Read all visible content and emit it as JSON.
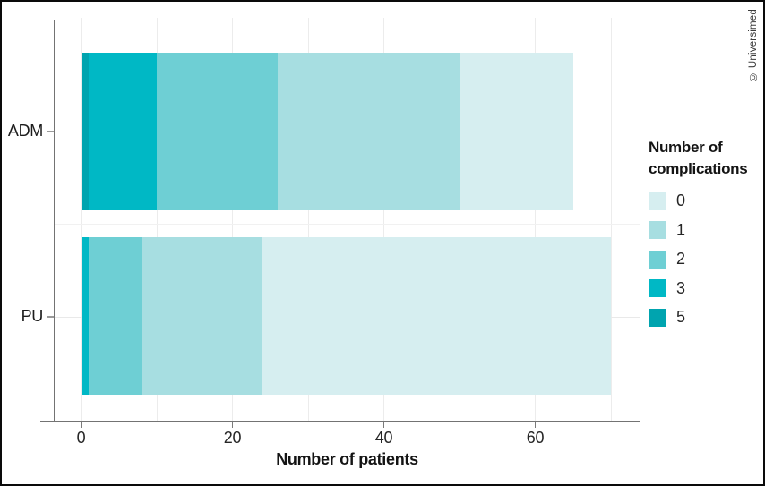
{
  "copyright": "© Universimed",
  "chart_data": {
    "type": "bar",
    "orientation": "horizontal",
    "stacked": true,
    "title": "",
    "xlabel": "Number of patients",
    "ylabel": "",
    "categories": [
      "ADM",
      "PU"
    ],
    "series": [
      {
        "name": "0",
        "color": "#d6eef0",
        "values": [
          15,
          46
        ]
      },
      {
        "name": "1",
        "color": "#a7dee1",
        "values": [
          24,
          16
        ]
      },
      {
        "name": "2",
        "color": "#6ecfd4",
        "values": [
          16,
          7
        ]
      },
      {
        "name": "3",
        "color": "#00b8c5",
        "values": [
          9,
          1
        ]
      },
      {
        "name": "5",
        "color": "#00a4af",
        "values": [
          1,
          0
        ]
      }
    ],
    "stack_order_from_axis": [
      "5",
      "3",
      "2",
      "1",
      "0"
    ],
    "totals": {
      "ADM": 65,
      "PU": 70
    },
    "xlim": [
      0,
      74
    ],
    "xticks": [
      0,
      20,
      40,
      60
    ],
    "x_grid_step": 10,
    "grid": true,
    "legend_position": "right"
  },
  "legend": {
    "title_lines": [
      "Number of",
      "complications"
    ],
    "items": [
      {
        "label": "0",
        "color": "#d6eef0"
      },
      {
        "label": "1",
        "color": "#a7dee1"
      },
      {
        "label": "2",
        "color": "#6ecfd4"
      },
      {
        "label": "3",
        "color": "#00b8c5"
      },
      {
        "label": "5",
        "color": "#00a4af"
      }
    ]
  }
}
